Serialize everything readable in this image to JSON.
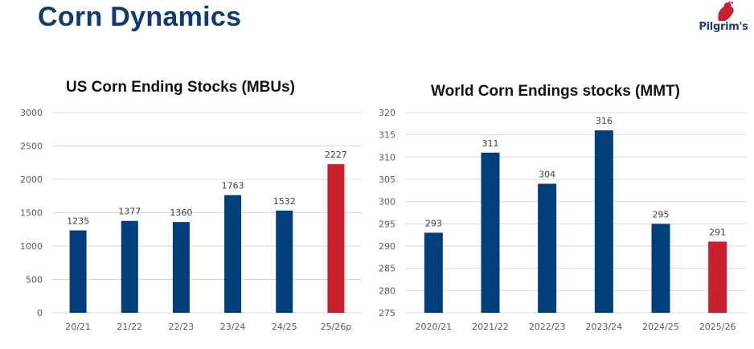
{
  "page": {
    "title": "Corn Dynamics"
  },
  "logo": {
    "text": "Pilgrim's"
  },
  "colors": {
    "title": "#0f3c6e",
    "bar": "#003f7a",
    "highlight": "#c8202e",
    "grid": "#d9d9d9"
  },
  "chart_data": [
    {
      "type": "bar",
      "title": "US Corn Ending Stocks (MBUs)",
      "categories": [
        "20/21",
        "21/22",
        "22/23",
        "23/24",
        "24/25",
        "25/26p"
      ],
      "values": [
        1235,
        1377,
        1360,
        1763,
        1532,
        2227
      ],
      "data_labels": [
        "1235",
        "1377",
        "1360",
        "1763",
        "1532",
        "2227"
      ],
      "highlight_index": 5,
      "ylim": [
        0,
        3000
      ],
      "yticks": [
        "0",
        "500",
        "1000",
        "1500",
        "2000",
        "2500",
        "3000"
      ],
      "grid": true,
      "legend": "none"
    },
    {
      "type": "bar",
      "title": "World Corn Endings stocks (MMT)",
      "categories": [
        "2020/21",
        "2021/22",
        "2022/23",
        "2023/24",
        "2024/25",
        "2025/26"
      ],
      "values": [
        293,
        311,
        304,
        316,
        295,
        291
      ],
      "data_labels": [
        "293",
        "311",
        "304",
        "316",
        "295",
        "291"
      ],
      "highlight_index": 5,
      "ylim": [
        275,
        320
      ],
      "yticks": [
        "275",
        "280",
        "285",
        "290",
        "295",
        "300",
        "305",
        "310",
        "315",
        "320"
      ],
      "grid": true,
      "legend": "none"
    }
  ]
}
